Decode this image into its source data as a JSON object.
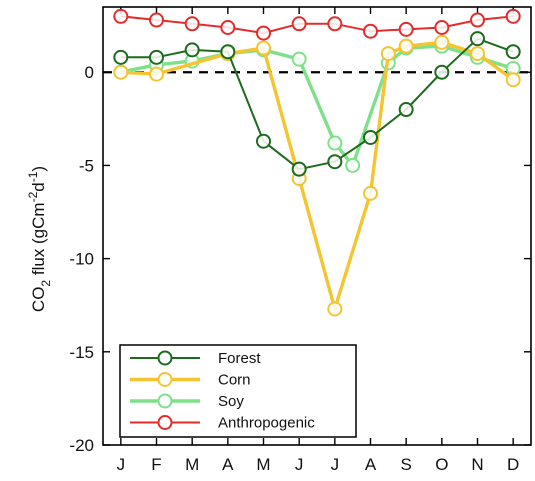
{
  "chart_data": {
    "type": "line",
    "ylabel": {
      "main": "CO",
      "sub": "2",
      "mid": " flux (gCm",
      "sup1": "-2",
      "d": "d",
      "sup2": "-1",
      "close": ")"
    },
    "ylim": [
      -20,
      3.5
    ],
    "yticks": [
      0,
      -5,
      -10,
      -15,
      -20
    ],
    "ytick_labels": [
      "0",
      "-5",
      "-10",
      "-15",
      "-20"
    ],
    "x_months": [
      "J",
      "F",
      "M",
      "A",
      "M",
      "J",
      "J",
      "A",
      "S",
      "O",
      "N",
      "D"
    ],
    "zero_line": true,
    "legend_position": "bottom-left",
    "series": [
      {
        "name": "Anthropogenic",
        "color": "#e32d2d",
        "x": [
          0.5,
          1.5,
          2.5,
          3.5,
          4.5,
          5.5,
          6.5,
          7.5,
          8.5,
          9.5,
          10.5,
          11.5
        ],
        "values": [
          3.0,
          2.8,
          2.6,
          2.4,
          2.1,
          2.6,
          2.6,
          2.2,
          2.3,
          2.4,
          2.8,
          3.0
        ]
      },
      {
        "name": "Soy",
        "color": "#7fe08a",
        "x": [
          0.5,
          1.5,
          2.5,
          3.5,
          4.5,
          5.5,
          6.5,
          7.0,
          8.0,
          8.5,
          9.5,
          10.5,
          11.5
        ],
        "values": [
          0.0,
          0.4,
          0.6,
          1.0,
          1.2,
          0.7,
          -3.8,
          -5.0,
          0.5,
          1.3,
          1.4,
          0.8,
          0.2
        ]
      },
      {
        "name": "Corn",
        "color": "#f5c431",
        "x": [
          0.5,
          1.5,
          3.5,
          4.5,
          5.5,
          6.5,
          7.5,
          8.0,
          8.5,
          9.5,
          10.5,
          11.5
        ],
        "values": [
          0.0,
          -0.1,
          1.0,
          1.3,
          -5.7,
          -12.7,
          -6.5,
          1.0,
          1.4,
          1.6,
          1.0,
          -0.4
        ]
      },
      {
        "name": "Forest",
        "color": "#1d6b1d",
        "x": [
          0.5,
          1.5,
          2.5,
          3.5,
          4.5,
          5.5,
          6.5,
          7.5,
          8.5,
          9.5,
          10.5,
          11.5
        ],
        "values": [
          0.8,
          0.8,
          1.2,
          1.1,
          -3.7,
          -5.2,
          -4.8,
          -3.5,
          -2.0,
          0.0,
          1.8,
          1.1
        ]
      }
    ],
    "legend_order": [
      "Forest",
      "Corn",
      "Soy",
      "Anthropogenic"
    ]
  }
}
